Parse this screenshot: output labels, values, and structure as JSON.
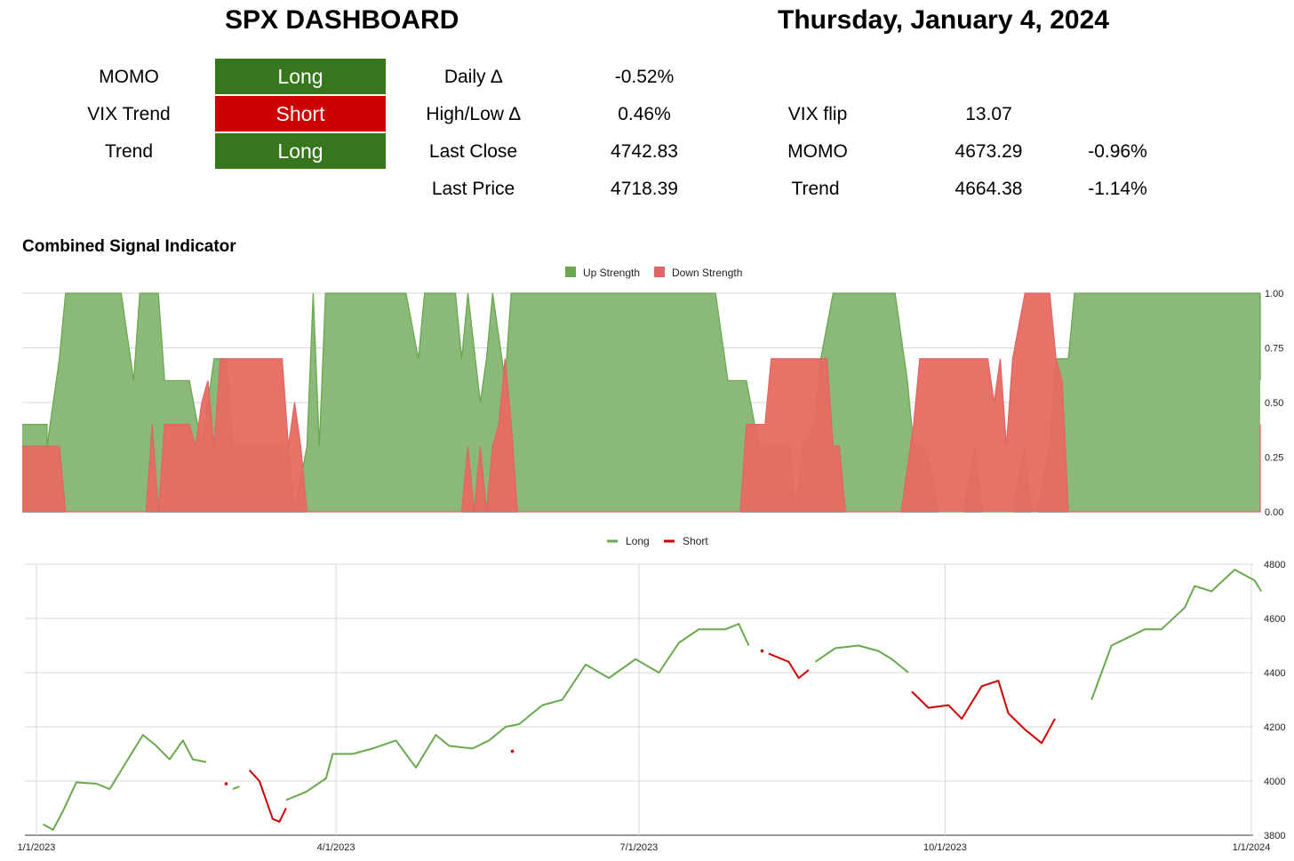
{
  "header": {
    "title": "SPX DASHBOARD",
    "date": "Thursday, January 4, 2024"
  },
  "signals": [
    {
      "label": "MOMO",
      "value": "Long",
      "color": "#38761d"
    },
    {
      "label": "VIX Trend",
      "value": "Short",
      "color": "#cc0000"
    },
    {
      "label": "Trend",
      "value": "Long",
      "color": "#38761d"
    }
  ],
  "stats": [
    {
      "label": "Daily ∆",
      "value": "-0.52%"
    },
    {
      "label": "High/Low ∆",
      "value": "0.46%"
    },
    {
      "label": "Last Close",
      "value": "4742.83"
    },
    {
      "label": "Last Price",
      "value": "4718.39"
    }
  ],
  "levels": [
    {
      "label": "VIX flip",
      "value": "13.07",
      "pct": ""
    },
    {
      "label": "MOMO",
      "value": "4673.29",
      "pct": "-0.96%"
    },
    {
      "label": "Trend",
      "value": "4664.38",
      "pct": "-1.14%"
    }
  ],
  "section_title": "Combined Signal Indicator",
  "colors": {
    "green": "#6aa84f",
    "green_fill": "#8ab97a",
    "red": "#e06666",
    "red_fill": "#e76a60",
    "long_line": "#6aa84f",
    "short_line": "#cc0000"
  },
  "chart_data": [
    {
      "type": "area",
      "legend": [
        "Up Strength",
        "Down Strength"
      ],
      "legend_position": "top",
      "y_ticks": [
        "1.00",
        "0.75",
        "0.50",
        "0.25",
        "0.00"
      ],
      "ylim": [
        0,
        1
      ],
      "x_range": [
        "2023-01-01",
        "2024-01-04"
      ],
      "series": [
        {
          "name": "Up Strength",
          "color": "#6aa84f",
          "points": [
            [
              0,
              0.4
            ],
            [
              0.02,
              0.4
            ],
            [
              0.02,
              0.3
            ],
            [
              0.03,
              0.7
            ],
            [
              0.035,
              1
            ],
            [
              0.08,
              1
            ],
            [
              0.09,
              0.6
            ],
            [
              0.095,
              1
            ],
            [
              0.11,
              1
            ],
            [
              0.115,
              0.6
            ],
            [
              0.135,
              0.6
            ],
            [
              0.145,
              0.3
            ],
            [
              0.155,
              0.7
            ],
            [
              0.165,
              0.7
            ],
            [
              0.17,
              0.3
            ],
            [
              0.18,
              0.3
            ],
            [
              0.19,
              0.3
            ],
            [
              0.2,
              0.3
            ],
            [
              0.21,
              0.3
            ],
            [
              0.215,
              0.3
            ],
            [
              0.22,
              0.0
            ],
            [
              0.23,
              0.3
            ],
            [
              0.235,
              1
            ],
            [
              0.24,
              0.3
            ],
            [
              0.245,
              1
            ],
            [
              0.31,
              1
            ],
            [
              0.32,
              0.7
            ],
            [
              0.325,
              1
            ],
            [
              0.35,
              1
            ],
            [
              0.355,
              0.7
            ],
            [
              0.36,
              1
            ],
            [
              0.37,
              0.5
            ],
            [
              0.375,
              0.7
            ],
            [
              0.38,
              1
            ],
            [
              0.39,
              0.6
            ],
            [
              0.395,
              1
            ],
            [
              0.56,
              1
            ],
            [
              0.57,
              0.6
            ],
            [
              0.585,
              0.6
            ],
            [
              0.595,
              0.3
            ],
            [
              0.61,
              0.3
            ],
            [
              0.62,
              0.3
            ],
            [
              0.625,
              0.0
            ],
            [
              0.63,
              0.3
            ],
            [
              0.64,
              0.4
            ],
            [
              0.645,
              0.7
            ],
            [
              0.655,
              1
            ],
            [
              0.705,
              1
            ],
            [
              0.715,
              0.6
            ],
            [
              0.72,
              0.3
            ],
            [
              0.73,
              0.3
            ],
            [
              0.74,
              0.0
            ],
            [
              0.75,
              0.0
            ],
            [
              0.76,
              0.0
            ],
            [
              0.77,
              0.3
            ],
            [
              0.775,
              0.0
            ],
            [
              0.78,
              0.0
            ],
            [
              0.79,
              0.0
            ],
            [
              0.8,
              0.0
            ],
            [
              0.81,
              0.3
            ],
            [
              0.815,
              0.0
            ],
            [
              0.82,
              0.0
            ],
            [
              0.83,
              0.3
            ],
            [
              0.835,
              0.7
            ],
            [
              0.845,
              0.7
            ],
            [
              0.85,
              1
            ],
            [
              1,
              1
            ],
            [
              1,
              0.6
            ]
          ]
        },
        {
          "name": "Down Strength",
          "color": "#e06666",
          "points": [
            [
              0,
              0.3
            ],
            [
              0.03,
              0.3
            ],
            [
              0.035,
              0
            ],
            [
              0.09,
              0
            ],
            [
              0.1,
              0
            ],
            [
              0.105,
              0.4
            ],
            [
              0.11,
              0
            ],
            [
              0.115,
              0.4
            ],
            [
              0.135,
              0.4
            ],
            [
              0.14,
              0.3
            ],
            [
              0.145,
              0.5
            ],
            [
              0.15,
              0.6
            ],
            [
              0.155,
              0.3
            ],
            [
              0.16,
              0.7
            ],
            [
              0.21,
              0.7
            ],
            [
              0.215,
              0.3
            ],
            [
              0.22,
              0.5
            ],
            [
              0.225,
              0.3
            ],
            [
              0.23,
              0
            ],
            [
              0.355,
              0
            ],
            [
              0.36,
              0.3
            ],
            [
              0.365,
              0
            ],
            [
              0.37,
              0.3
            ],
            [
              0.375,
              0
            ],
            [
              0.38,
              0.3
            ],
            [
              0.385,
              0.4
            ],
            [
              0.39,
              0.7
            ],
            [
              0.395,
              0.4
            ],
            [
              0.4,
              0
            ],
            [
              0.58,
              0
            ],
            [
              0.585,
              0.4
            ],
            [
              0.6,
              0.4
            ],
            [
              0.605,
              0.7
            ],
            [
              0.65,
              0.7
            ],
            [
              0.655,
              0.3
            ],
            [
              0.66,
              0.3
            ],
            [
              0.665,
              0
            ],
            [
              0.71,
              0
            ],
            [
              0.72,
              0.4
            ],
            [
              0.725,
              0.7
            ],
            [
              0.78,
              0.7
            ],
            [
              0.785,
              0.5
            ],
            [
              0.79,
              0.7
            ],
            [
              0.795,
              0.3
            ],
            [
              0.8,
              0.7
            ],
            [
              0.81,
              1
            ],
            [
              0.83,
              1
            ],
            [
              0.835,
              0.7
            ],
            [
              0.84,
              0.6
            ],
            [
              0.845,
              0
            ],
            [
              1,
              0
            ],
            [
              1,
              0.4
            ]
          ]
        }
      ]
    },
    {
      "type": "line",
      "legend": [
        "Long",
        "Short"
      ],
      "legend_position": "top",
      "x_ticks": [
        "1/1/2023",
        "4/1/2023",
        "7/1/2023",
        "10/1/2023",
        "1/1/2024"
      ],
      "y_ticks": [
        "4800",
        "4600",
        "4400",
        "4200",
        "4000",
        "3800"
      ],
      "ylim": [
        3800,
        4800
      ],
      "series": [
        {
          "name": "Long",
          "color": "#6aa84f",
          "segments": [
            [
              [
                "2023-01-03",
                3840
              ],
              [
                "2023-01-06",
                3820
              ],
              [
                "2023-01-09",
                3890
              ],
              [
                "2023-01-13",
                3995
              ],
              [
                "2023-01-19",
                3990
              ],
              [
                "2023-01-23",
                3970
              ],
              [
                "2023-01-26",
                4030
              ],
              [
                "2023-02-02",
                4170
              ],
              [
                "2023-02-06",
                4130
              ],
              [
                "2023-02-10",
                4080
              ],
              [
                "2023-02-14",
                4150
              ],
              [
                "2023-02-17",
                4080
              ],
              [
                "2023-02-21",
                4070
              ]
            ],
            [
              [
                "2023-03-01",
                3970
              ],
              [
                "2023-03-03",
                3980
              ]
            ],
            [
              [
                "2023-03-17",
                3930
              ],
              [
                "2023-03-23",
                3960
              ],
              [
                "2023-03-29",
                4010
              ],
              [
                "2023-03-31",
                4100
              ],
              [
                "2023-04-06",
                4100
              ],
              [
                "2023-04-12",
                4120
              ],
              [
                "2023-04-19",
                4150
              ],
              [
                "2023-04-25",
                4050
              ],
              [
                "2023-05-01",
                4170
              ],
              [
                "2023-05-05",
                4130
              ],
              [
                "2023-05-12",
                4120
              ],
              [
                "2023-05-17",
                4150
              ],
              [
                "2023-05-22",
                4200
              ],
              [
                "2023-05-26",
                4210
              ],
              [
                "2023-06-02",
                4280
              ],
              [
                "2023-06-08",
                4300
              ],
              [
                "2023-06-15",
                4430
              ],
              [
                "2023-06-22",
                4380
              ],
              [
                "2023-06-30",
                4450
              ],
              [
                "2023-07-07",
                4400
              ],
              [
                "2023-07-13",
                4510
              ],
              [
                "2023-07-19",
                4560
              ],
              [
                "2023-07-27",
                4560
              ],
              [
                "2023-07-31",
                4580
              ],
              [
                "2023-08-03",
                4500
              ]
            ],
            [
              [
                "2023-08-23",
                4440
              ],
              [
                "2023-08-29",
                4490
              ],
              [
                "2023-09-05",
                4500
              ],
              [
                "2023-09-11",
                4480
              ],
              [
                "2023-09-15",
                4450
              ],
              [
                "2023-09-20",
                4400
              ]
            ],
            [
              [
                "2023-11-14",
                4300
              ],
              [
                "2023-11-20",
                4500
              ],
              [
                "2023-11-30",
                4560
              ],
              [
                "2023-12-05",
                4560
              ],
              [
                "2023-12-12",
                4640
              ],
              [
                "2023-12-15",
                4720
              ],
              [
                "2023-12-20",
                4700
              ],
              [
                "2023-12-27",
                4780
              ],
              [
                "2024-01-02",
                4740
              ],
              [
                "2024-01-04",
                4700
              ]
            ]
          ]
        },
        {
          "name": "Short",
          "color": "#cc0000",
          "segments": [
            [
              [
                "2023-02-27",
                3990
              ]
            ],
            [
              [
                "2023-03-06",
                4040
              ],
              [
                "2023-03-09",
                4000
              ],
              [
                "2023-03-13",
                3860
              ],
              [
                "2023-03-15",
                3850
              ],
              [
                "2023-03-17",
                3900
              ]
            ],
            [
              [
                "2023-05-24",
                4110
              ]
            ],
            [
              [
                "2023-08-07",
                4480
              ]
            ],
            [
              [
                "2023-08-09",
                4470
              ],
              [
                "2023-08-15",
                4440
              ],
              [
                "2023-08-18",
                4380
              ],
              [
                "2023-08-21",
                4410
              ]
            ],
            [
              [
                "2023-09-21",
                4330
              ],
              [
                "2023-09-26",
                4270
              ],
              [
                "2023-10-02",
                4280
              ],
              [
                "2023-10-06",
                4230
              ],
              [
                "2023-10-12",
                4350
              ],
              [
                "2023-10-17",
                4370
              ],
              [
                "2023-10-20",
                4250
              ],
              [
                "2023-10-25",
                4190
              ],
              [
                "2023-10-30",
                4140
              ],
              [
                "2023-11-03",
                4230
              ]
            ]
          ]
        }
      ]
    }
  ]
}
